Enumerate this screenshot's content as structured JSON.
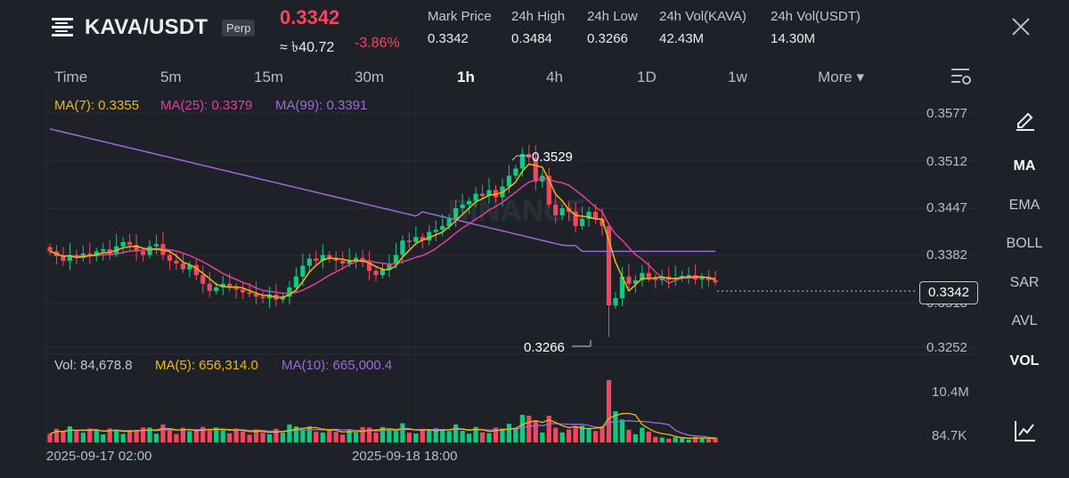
{
  "header": {
    "symbol": "KAVA/USDT",
    "contract_type": "Perp",
    "last_price": "0.3342",
    "approx_fiat": "≈ ৳40.72",
    "change_pct": "-3.86%",
    "stats": [
      {
        "label": "Mark Price",
        "value": "0.3342"
      },
      {
        "label": "24h High",
        "value": "0.3484"
      },
      {
        "label": "24h Low",
        "value": "0.3266"
      },
      {
        "label": "24h Vol(KAVA)",
        "value": "42.43M"
      },
      {
        "label": "24h Vol(USDT)",
        "value": "14.30M"
      }
    ],
    "icons": {
      "menu": "menu-icon",
      "close": "close-icon"
    }
  },
  "timeframes": {
    "items": [
      "Time",
      "5m",
      "15m",
      "30m",
      "1h",
      "4h",
      "1D",
      "1w",
      "More ▾"
    ],
    "active": "1h"
  },
  "legend": {
    "ma7": "MA(7): 0.3355",
    "ma25": "MA(25): 0.3379",
    "ma99": "MA(99): 0.3391",
    "vol": "Vol: 84,678.8",
    "vol_ma5": "MA(5): 656,314.0",
    "vol_ma10": "MA(10): 665,000.4"
  },
  "colors": {
    "up": "#0ecb81",
    "down": "#f6465d",
    "ma7": "#f0b90b",
    "ma25": "#e040a0",
    "ma99": "#9c6ade",
    "background": "#1e2127"
  },
  "right_toolbar": {
    "items": [
      "MA",
      "EMA",
      "BOLL",
      "SAR",
      "AVL",
      "VOL"
    ],
    "active": [
      "MA",
      "VOL"
    ],
    "icons": {
      "top": "pencil-icon",
      "bottom": "line-chart-icon"
    }
  },
  "price_axis": {
    "ticks": [
      "0.3577",
      "0.3512",
      "0.3447",
      "0.3382",
      "0.3318",
      "0.3252"
    ],
    "current_price_tag": "0.3342"
  },
  "volume_axis": {
    "ticks": [
      "10.4M",
      "84.7K"
    ]
  },
  "time_axis": {
    "ticks": [
      "2025-09-17 02:00",
      "2025-09-18 18:00"
    ]
  },
  "annotations": {
    "high": "0.3529",
    "low": "0.3266"
  },
  "watermark": "BINANCE",
  "chart_data": {
    "type": "candlestick",
    "interval": "1h",
    "y_range": [
      0.3252,
      0.3577
    ],
    "series_close": [
      0.3385,
      0.3378,
      0.3372,
      0.338,
      0.3376,
      0.3382,
      0.3378,
      0.3385,
      0.3388,
      0.3382,
      0.3392,
      0.3398,
      0.3394,
      0.3385,
      0.338,
      0.3392,
      0.3395,
      0.338,
      0.3372,
      0.3368,
      0.336,
      0.3366,
      0.3352,
      0.334,
      0.333,
      0.3335,
      0.334,
      0.3336,
      0.3332,
      0.3328,
      0.3326,
      0.3322,
      0.332,
      0.3325,
      0.3318,
      0.3322,
      0.3335,
      0.335,
      0.3365,
      0.3375,
      0.3372,
      0.338,
      0.3376,
      0.3372,
      0.3368,
      0.3372,
      0.3376,
      0.337,
      0.3358,
      0.3352,
      0.336,
      0.3368,
      0.338,
      0.34,
      0.3398,
      0.3405,
      0.34,
      0.3412,
      0.3415,
      0.342,
      0.343,
      0.3445,
      0.345,
      0.3455,
      0.3465,
      0.3462,
      0.347,
      0.346,
      0.3475,
      0.349,
      0.35,
      0.352,
      0.3515,
      0.3482,
      0.349,
      0.345,
      0.3435,
      0.3445,
      0.344,
      0.342,
      0.343,
      0.344,
      0.343,
      0.342,
      0.331,
      0.332,
      0.335,
      0.334,
      0.3345,
      0.3355,
      0.3348,
      0.3345,
      0.335,
      0.3346,
      0.3348,
      0.3351,
      0.3352,
      0.3346,
      0.335,
      0.3345,
      0.3342
    ],
    "volume_axis_range": [
      "84.7K",
      "10.4M"
    ]
  }
}
